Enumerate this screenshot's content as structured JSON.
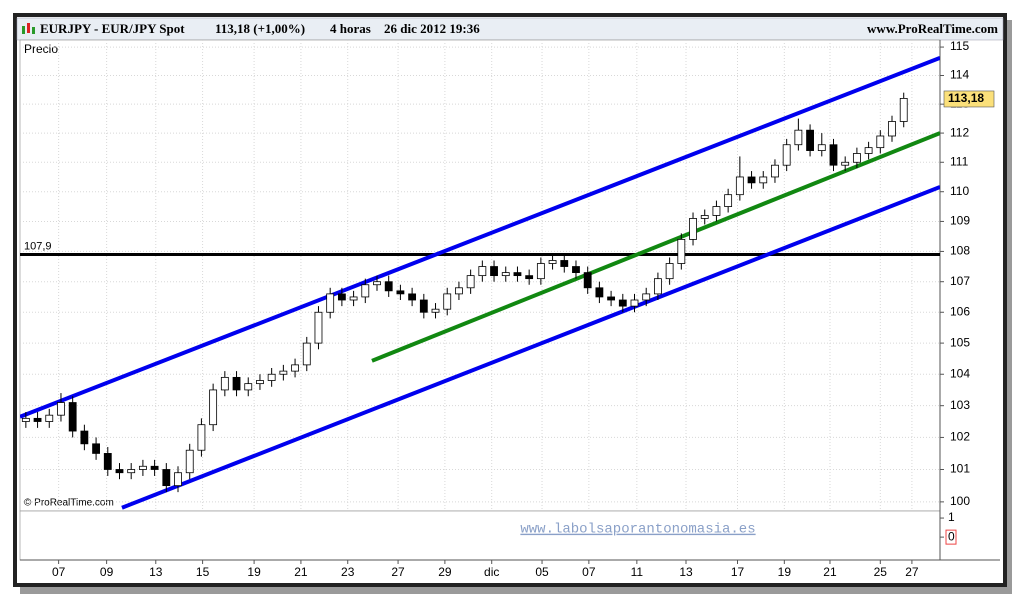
{
  "header": {
    "symbol": "EURJPY - EUR/JPY Spot",
    "quote": "113,18 (+1,00%)",
    "period": "4 horas",
    "timestamp": "26 dic 2012 19:36",
    "site": "www.ProRealTime.com"
  },
  "chart_data": {
    "type": "candlestick",
    "y_label": "Precio",
    "copyright": "© ProRealTime.com",
    "watermark": "www.labolsaporantonomasia.es",
    "open": [
      102.5,
      102.6,
      102.5,
      102.7,
      103.1,
      102.2,
      101.8,
      101.5,
      101.0,
      100.9,
      101.0,
      101.1,
      101.0,
      100.5,
      100.9,
      101.6,
      102.4,
      103.5,
      103.9,
      103.5,
      103.7,
      103.8,
      104.0,
      104.1,
      104.3,
      105.0,
      106.0,
      106.6,
      106.4,
      106.5,
      106.9,
      107.0,
      106.7,
      106.6,
      106.4,
      106.0,
      106.1,
      106.6,
      106.8,
      107.2,
      107.5,
      107.2,
      107.3,
      107.2,
      107.1,
      107.6,
      107.7,
      107.5,
      107.3,
      106.8,
      106.5,
      106.4,
      106.2,
      106.4,
      106.6,
      107.1,
      107.6,
      108.4,
      109.1,
      109.2,
      109.5,
      109.9,
      110.5,
      110.3,
      110.5,
      110.9,
      111.6,
      112.1,
      111.4,
      111.6,
      110.9,
      111.0,
      111.3,
      111.5,
      111.9,
      112.4
    ],
    "high": [
      102.8,
      102.8,
      102.9,
      103.4,
      103.3,
      102.4,
      102.0,
      101.7,
      101.2,
      101.2,
      101.3,
      101.3,
      101.2,
      101.1,
      101.8,
      102.6,
      103.7,
      104.1,
      104.1,
      103.9,
      104.0,
      104.2,
      104.3,
      104.5,
      105.2,
      106.2,
      106.8,
      106.8,
      106.7,
      107.1,
      107.2,
      107.2,
      106.9,
      106.8,
      106.6,
      106.3,
      106.8,
      107.0,
      107.4,
      107.7,
      107.7,
      107.5,
      107.5,
      107.4,
      107.8,
      107.9,
      107.9,
      107.7,
      107.5,
      107.0,
      106.7,
      106.6,
      106.6,
      106.8,
      107.3,
      107.8,
      108.6,
      109.3,
      109.4,
      109.7,
      110.1,
      111.2,
      110.7,
      110.7,
      111.1,
      111.8,
      112.5,
      112.3,
      112.0,
      111.8,
      111.2,
      111.5,
      111.7,
      112.1,
      112.6,
      113.4
    ],
    "low": [
      102.3,
      102.3,
      102.3,
      102.5,
      102.0,
      101.6,
      101.3,
      100.8,
      100.7,
      100.7,
      100.8,
      100.8,
      100.3,
      100.3,
      100.7,
      101.4,
      102.2,
      103.3,
      103.3,
      103.3,
      103.5,
      103.6,
      103.8,
      103.9,
      104.1,
      104.8,
      105.8,
      106.2,
      106.2,
      106.3,
      106.7,
      106.5,
      106.4,
      106.2,
      105.8,
      105.8,
      105.9,
      106.4,
      106.6,
      107.0,
      107.0,
      107.0,
      107.0,
      106.9,
      106.9,
      107.4,
      107.3,
      107.1,
      106.6,
      106.3,
      106.2,
      106.0,
      106.0,
      106.2,
      106.4,
      106.9,
      107.4,
      108.2,
      108.9,
      109.0,
      109.3,
      109.7,
      110.1,
      110.1,
      110.3,
      110.7,
      111.4,
      111.2,
      111.2,
      110.7,
      110.7,
      110.8,
      111.1,
      111.3,
      111.7,
      112.2
    ],
    "close": [
      102.6,
      102.5,
      102.7,
      103.1,
      102.2,
      101.8,
      101.5,
      101.0,
      100.9,
      101.0,
      101.1,
      101.0,
      100.5,
      100.9,
      101.6,
      102.4,
      103.5,
      103.9,
      103.5,
      103.7,
      103.8,
      104.0,
      104.1,
      104.3,
      105.0,
      106.0,
      106.6,
      106.4,
      106.5,
      106.9,
      107.0,
      106.7,
      106.6,
      106.4,
      106.0,
      106.1,
      106.6,
      106.8,
      107.2,
      107.5,
      107.2,
      107.3,
      107.2,
      107.1,
      107.6,
      107.7,
      107.5,
      107.3,
      106.8,
      106.5,
      106.4,
      106.2,
      106.4,
      106.6,
      107.1,
      107.6,
      108.4,
      109.1,
      109.2,
      109.5,
      109.9,
      110.5,
      110.3,
      110.5,
      110.9,
      111.6,
      112.1,
      111.4,
      111.6,
      110.9,
      111.0,
      111.3,
      111.5,
      111.9,
      112.4,
      113.2
    ],
    "up_color": "#ffffff",
    "down_color": "#000000",
    "xlim": [
      0,
      78.6
    ],
    "xticks": [
      {
        "value": 3.3,
        "label": "07"
      },
      {
        "value": 7.4,
        "label": "09"
      },
      {
        "value": 11.6,
        "label": "13"
      },
      {
        "value": 15.6,
        "label": "15"
      },
      {
        "value": 20.0,
        "label": "19"
      },
      {
        "value": 24.0,
        "label": "21"
      },
      {
        "value": 28.0,
        "label": "23"
      },
      {
        "value": 32.3,
        "label": "27"
      },
      {
        "value": 36.3,
        "label": "29"
      },
      {
        "value": 40.3,
        "label": "dic"
      },
      {
        "value": 44.6,
        "label": "05"
      },
      {
        "value": 48.6,
        "label": "07"
      },
      {
        "value": 52.7,
        "label": "11"
      },
      {
        "value": 56.9,
        "label": "13"
      },
      {
        "value": 61.3,
        "label": "17"
      },
      {
        "value": 65.3,
        "label": "19"
      },
      {
        "value": 69.2,
        "label": "21"
      },
      {
        "value": 73.5,
        "label": "25"
      },
      {
        "value": 76.2,
        "label": "27"
      }
    ],
    "ylim": [
      99.72,
      115.25
    ],
    "yticks": [
      100,
      101,
      102,
      103,
      104,
      105,
      106,
      107,
      108,
      109,
      110,
      111,
      112,
      113,
      114,
      115
    ],
    "log_scale": true,
    "grid": true,
    "last_price": {
      "value": 113.18,
      "label": "113,18"
    },
    "level": {
      "value": 107.9,
      "label": "107,9",
      "color": "#000000"
    },
    "trend_lines": [
      {
        "color": "#0000ee",
        "x": [
          0,
          78.6
        ],
        "y": [
          102.65,
          114.62
        ]
      },
      {
        "color": "#0000ee",
        "x": [
          8.71,
          78.6
        ],
        "y": [
          99.82,
          110.16
        ]
      },
      {
        "color": "#118811",
        "x": [
          30.07,
          78.6
        ],
        "y": [
          104.43,
          112.0
        ]
      }
    ],
    "lower_panel": {
      "ylim": [
        -1.2,
        1.37
      ],
      "yticks": [
        0,
        1
      ]
    }
  }
}
